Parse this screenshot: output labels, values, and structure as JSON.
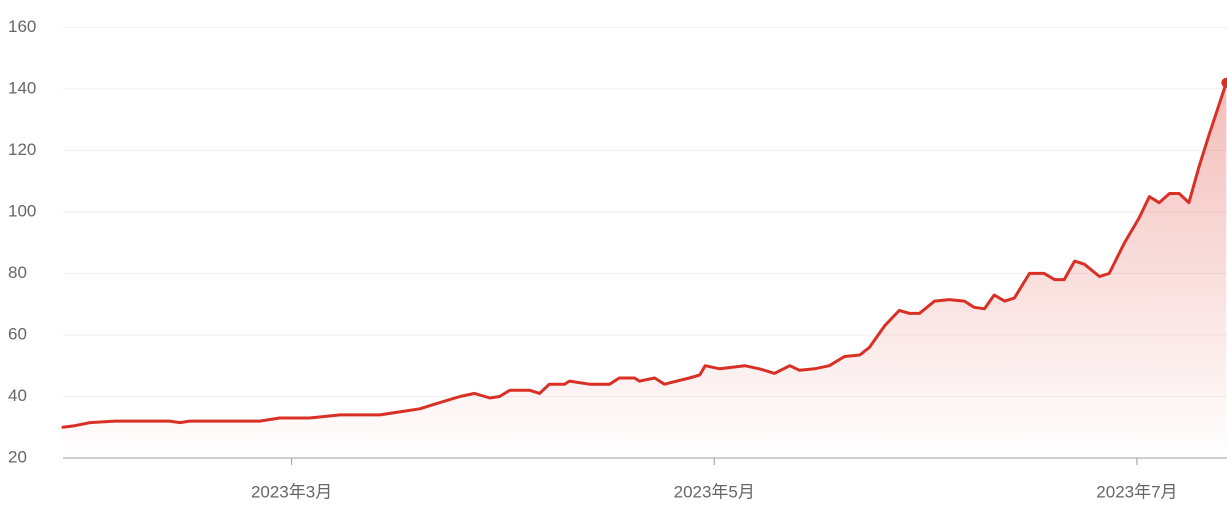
{
  "chart_data": {
    "type": "line",
    "x": [
      1.0,
      2.7,
      4.9,
      8.5,
      16.4,
      17.9,
      19.3,
      29.4,
      32.3,
      34.0,
      36.6,
      41.0,
      46.7,
      49.6,
      52.5,
      55.4,
      58.3,
      60.4,
      62.6,
      64.0,
      65.5,
      68.4,
      69.8,
      71.2,
      73.4,
      74.1,
      77.0,
      79.9,
      81.3,
      83.5,
      84.2,
      86.4,
      87.8,
      91.4,
      92.9,
      93.7,
      95.8,
      99.4,
      101.5,
      103.7,
      105.9,
      107.3,
      109.5,
      111.6,
      113.8,
      116.0,
      117.4,
      119.6,
      121.7,
      123.2,
      124.6,
      126.8,
      128.9,
      131.1,
      132.5,
      134.0,
      135.4,
      136.9,
      138.3,
      140.5,
      142.6,
      144.1,
      145.5,
      147.0,
      148.4,
      150.6,
      152.0,
      154.2,
      156.3,
      157.8,
      159.2,
      160.7,
      162.1,
      163.5,
      165.0,
      166.4,
      168.9
    ],
    "series": [
      {
        "color": "#d93025",
        "values": [
          30,
          30.5,
          31.5,
          32,
          32,
          31.5,
          32,
          32,
          33,
          33,
          33,
          34,
          34,
          35,
          36,
          38,
          40,
          41,
          39.5,
          40,
          42,
          42,
          41,
          44,
          44,
          45,
          44,
          44,
          46,
          46,
          45,
          46,
          44,
          46,
          47,
          50,
          49,
          50,
          49,
          47.5,
          50,
          48.5,
          49,
          50,
          53,
          53.5,
          56,
          63,
          68,
          67,
          67,
          71,
          71.5,
          71,
          69,
          68.5,
          73,
          71,
          72,
          80,
          80,
          78,
          78,
          84,
          83,
          79,
          80,
          90,
          98,
          105,
          103,
          106,
          106,
          103,
          115,
          125,
          142
        ]
      }
    ],
    "xlim": [
      0,
      169
    ],
    "xticks": [
      {
        "value": 34,
        "label": "2023年3月"
      },
      {
        "value": 95,
        "label": "2023年5月"
      },
      {
        "value": 156,
        "label": "2023年7月"
      }
    ],
    "ylim": [
      20,
      165
    ],
    "yticks": [
      20,
      40,
      60,
      80,
      100,
      120,
      140,
      160
    ],
    "grid": true
  }
}
